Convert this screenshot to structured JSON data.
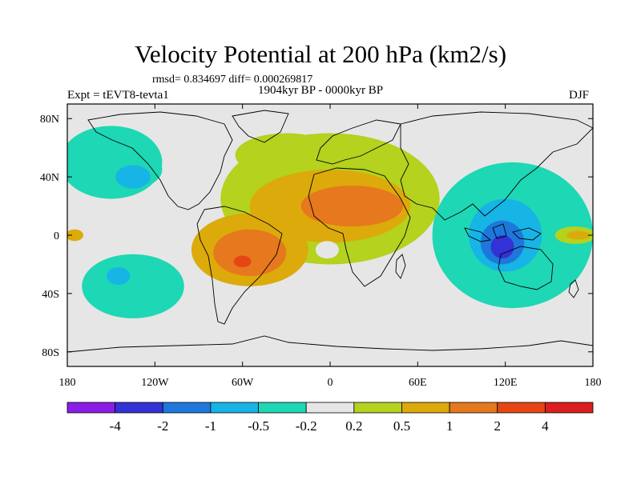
{
  "title": "Velocity Potential at 200 hPa (km2/s)",
  "stats_line": "rmsd= 0.834697 diff= 0.000269817",
  "period": "1904kyr BP - 0000kyr BP",
  "experiment": "Expt = tEVT8-tevta1",
  "season": "DJF",
  "map": {
    "projection": "cylindrical-equidistant",
    "lon_range": [
      -180,
      180
    ],
    "lat_range": [
      -90,
      90
    ],
    "x_ticks": [
      {
        "value": -180,
        "label": "180"
      },
      {
        "value": -120,
        "label": "120W"
      },
      {
        "value": -60,
        "label": "60W"
      },
      {
        "value": 0,
        "label": "0"
      },
      {
        "value": 60,
        "label": "60E"
      },
      {
        "value": 120,
        "label": "120E"
      },
      {
        "value": 180,
        "label": "180"
      }
    ],
    "y_ticks": [
      {
        "value": 80,
        "label": "80N"
      },
      {
        "value": 40,
        "label": "40N"
      },
      {
        "value": 0,
        "label": "0"
      },
      {
        "value": -40,
        "label": "40S"
      },
      {
        "value": -80,
        "label": "80S"
      }
    ],
    "fields": [
      {
        "name": "east-pacific-positive",
        "lon": -175,
        "lat": 0,
        "r_lon": 6,
        "r_lat": 4,
        "level": 0.5
      },
      {
        "name": "north-atlantic-positive",
        "lon": -30,
        "lat": 55,
        "r_lon": 35,
        "r_lat": 15,
        "level": 0.2
      },
      {
        "name": "atlantic-africa-positive",
        "lon": 0,
        "lat": 25,
        "r_lon": 75,
        "r_lat": 45,
        "level": 0.2
      },
      {
        "name": "atlantic-africa-positive-core",
        "lon": 0,
        "lat": 20,
        "r_lon": 55,
        "r_lat": 25,
        "level": 0.5
      },
      {
        "name": "south-america-positive",
        "lon": -55,
        "lat": -10,
        "r_lon": 40,
        "r_lat": 25,
        "level": 0.5
      },
      {
        "name": "africa-strong-positive",
        "lon": 15,
        "lat": 20,
        "r_lon": 35,
        "r_lat": 14,
        "level": 1
      },
      {
        "name": "south-america-strong-positive",
        "lon": -55,
        "lat": -12,
        "r_lon": 25,
        "r_lat": 16,
        "level": 1
      },
      {
        "name": "south-america-max",
        "lon": -60,
        "lat": -18,
        "r_lon": 6,
        "r_lat": 4,
        "level": 2
      },
      {
        "name": "north-pacific-negative",
        "lon": -150,
        "lat": 50,
        "r_lon": 35,
        "r_lat": 25,
        "level": -0.2
      },
      {
        "name": "north-pacific-negative-core",
        "lon": -140,
        "lat": 45,
        "r_lon": 25,
        "r_lat": 14,
        "level": -0.5
      },
      {
        "name": "north-pacific-negative-inner",
        "lon": -135,
        "lat": 40,
        "r_lon": 12,
        "r_lat": 8,
        "level": -1
      },
      {
        "name": "south-pacific-negative",
        "lon": -135,
        "lat": -35,
        "r_lon": 35,
        "r_lat": 22,
        "level": -0.2
      },
      {
        "name": "south-pacific-negative-core",
        "lon": -140,
        "lat": -30,
        "r_lon": 18,
        "r_lat": 14,
        "level": -0.5
      },
      {
        "name": "south-pacific-negative-inner",
        "lon": -145,
        "lat": -28,
        "r_lon": 8,
        "r_lat": 6,
        "level": -1
      },
      {
        "name": "indo-pacific-negative",
        "lon": 125,
        "lat": 0,
        "r_lon": 55,
        "r_lat": 50,
        "level": -0.2
      },
      {
        "name": "indo-pacific-negative-core",
        "lon": 120,
        "lat": 5,
        "r_lon": 40,
        "r_lat": 40,
        "level": -0.5
      },
      {
        "name": "indo-pacific-negative-inner",
        "lon": 120,
        "lat": 0,
        "r_lon": 25,
        "r_lat": 25,
        "level": -1
      },
      {
        "name": "maritime-continent-negative",
        "lon": 118,
        "lat": -5,
        "r_lon": 15,
        "r_lat": 15,
        "level": -2
      },
      {
        "name": "maritime-continent-min",
        "lon": 118,
        "lat": -8,
        "r_lon": 8,
        "r_lat": 8,
        "level": -4
      },
      {
        "name": "west-pacific-positive",
        "lon": 168,
        "lat": 0,
        "r_lon": 14,
        "r_lat": 6,
        "level": 0.2
      },
      {
        "name": "west-pacific-positive-core",
        "lon": 170,
        "lat": 0,
        "r_lon": 8,
        "r_lat": 3,
        "level": 0.5
      },
      {
        "name": "south-atlantic-neutral",
        "lon": -2,
        "lat": -10,
        "r_lon": 8,
        "r_lat": 6,
        "level": 0
      }
    ]
  },
  "colorbar": {
    "levels": [
      "-4",
      "-2",
      "-1",
      "-0.5",
      "-0.2",
      "0.2",
      "0.5",
      "1",
      "2",
      "4"
    ],
    "colors": [
      "#8a1ee6",
      "#3232d6",
      "#1e78dc",
      "#17b4e6",
      "#1ed7b4",
      "#e6e6e6",
      "#b4d21e",
      "#dcaa0a",
      "#e6781e",
      "#e64614",
      "#dc1e1e"
    ]
  },
  "level_colors": {
    "-4": "#3232d6",
    "-2": "#1e78dc",
    "-1": "#17b4e6",
    "-0.5": "#1ed7b4",
    "-0.2": "#1ed7b4",
    "0": "#e6e6e6",
    "0.2": "#b4d21e",
    "0.5": "#dcaa0a",
    "1": "#e6781e",
    "2": "#e64614",
    "4": "#dc1e1e"
  }
}
